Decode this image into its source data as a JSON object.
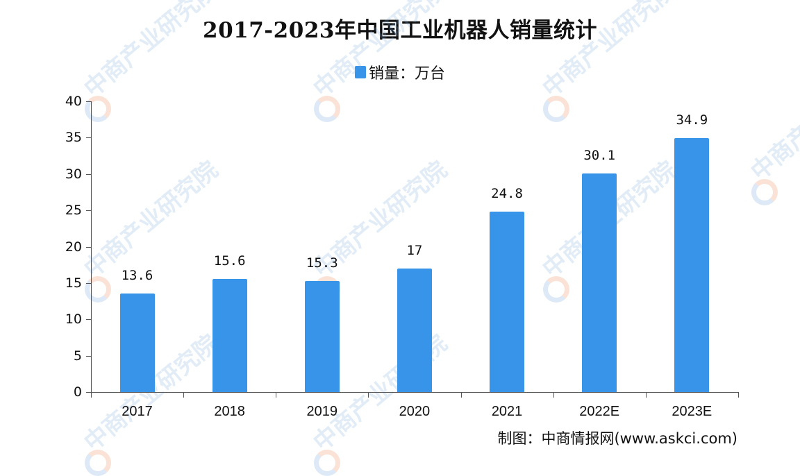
{
  "title": "2017-2023年中国工业机器人销量统计",
  "legend": {
    "label": "销量：万台",
    "color": "#3794e8"
  },
  "source": "制图：中商情报网(www.askci.com)",
  "watermark": "中商产业研究院",
  "chart_data": {
    "type": "bar",
    "title": "2017-2023年中国工业机器人销量统计",
    "xlabel": "",
    "ylabel": "销量：万台",
    "categories": [
      "2017",
      "2018",
      "2019",
      "2020",
      "2021",
      "2022E",
      "2023E"
    ],
    "series": [
      {
        "name": "销量：万台",
        "values": [
          13.6,
          15.6,
          15.3,
          17,
          24.8,
          30.1,
          34.9
        ],
        "color": "#3794e8"
      }
    ],
    "value_labels": [
      "13.6",
      "15.6",
      "15.3",
      "17",
      "24.8",
      "30.1",
      "34.9"
    ],
    "ylim": [
      0,
      40
    ],
    "yticks": [
      0,
      5,
      10,
      15,
      20,
      25,
      30,
      35,
      40
    ],
    "grid": false,
    "legend_position": "top-center"
  }
}
